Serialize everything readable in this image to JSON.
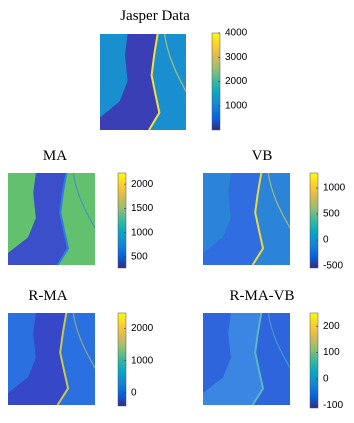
{
  "panels": [
    {
      "title": "Jasper Data",
      "clim": [
        0,
        4000
      ],
      "ticks": [
        1000,
        2000,
        3000,
        4000
      ]
    },
    {
      "title": "MA",
      "clim": [
        270,
        2230
      ],
      "ticks": [
        500,
        1000,
        1500,
        2000
      ]
    },
    {
      "title": "VB",
      "clim": [
        -540,
        1290
      ],
      "ticks": [
        -500,
        0,
        500,
        1000
      ]
    },
    {
      "title": "R-MA",
      "clim": [
        -400,
        2470
      ],
      "ticks": [
        0,
        1000,
        2000
      ]
    },
    {
      "title": "R-MA-VB",
      "clim": [
        -110,
        250
      ],
      "ticks": [
        -100,
        0,
        100,
        200
      ]
    }
  ]
}
